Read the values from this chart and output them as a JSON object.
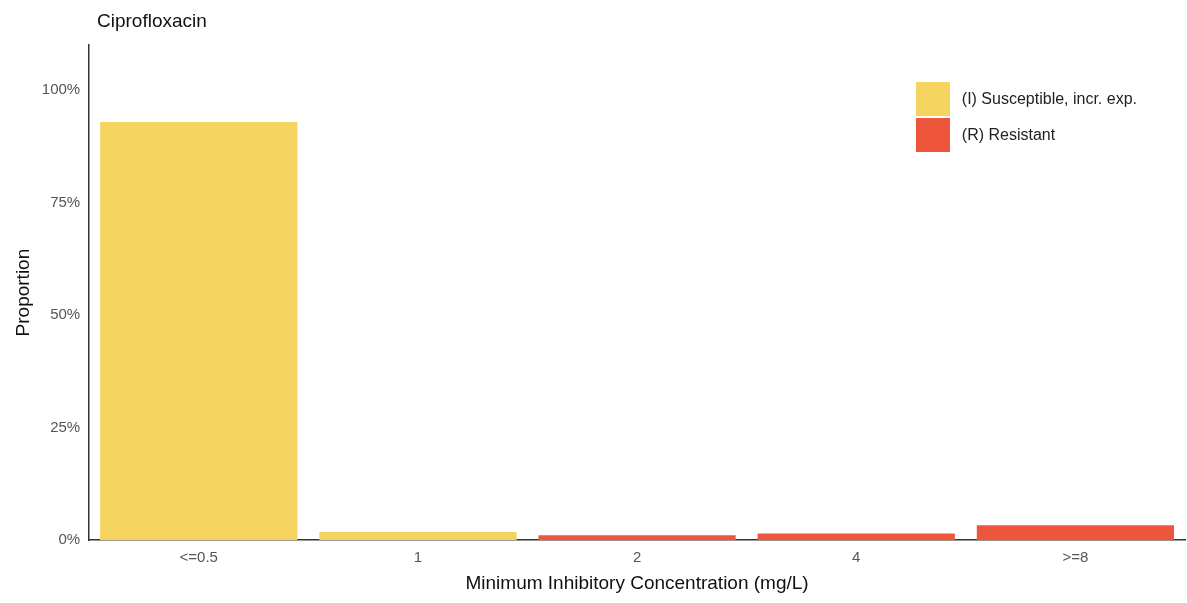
{
  "chart_data": {
    "type": "bar",
    "title": "Ciprofloxacin",
    "xlabel": "Minimum Inhibitory Concentration (mg/L)",
    "ylabel": "Proportion",
    "categories": [
      "<=0.5",
      "1",
      "2",
      "4",
      ">=8"
    ],
    "series": [
      {
        "name": "(I) Susceptible, incr. exp.",
        "color": "#f4d35e",
        "values": [
          92.9,
          1.8,
          null,
          null,
          null
        ]
      },
      {
        "name": "(R) Resistant",
        "color": "#ee563b",
        "values": [
          null,
          null,
          1.1,
          1.5,
          3.3
        ]
      }
    ],
    "stacked": true,
    "ylim": [
      0,
      110
    ],
    "yticks": [
      {
        "value": 0,
        "label": "0%"
      },
      {
        "value": 25,
        "label": "25%"
      },
      {
        "value": 50,
        "label": "50%"
      },
      {
        "value": 75,
        "label": "75%"
      },
      {
        "value": 100,
        "label": "100%"
      }
    ],
    "grid": false,
    "legend": "top right"
  }
}
